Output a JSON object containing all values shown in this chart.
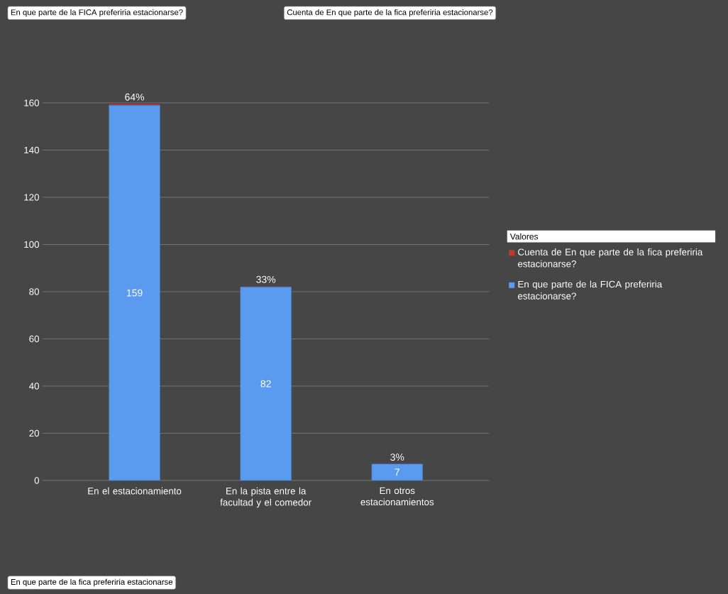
{
  "chart_data": {
    "type": "bar",
    "stacked": true,
    "categories": [
      "En el estacionamiento",
      "En la pista entre la facultad y el comedor",
      "En otros estacionamientos"
    ],
    "series": [
      {
        "name": "En que parte de la FICA preferiria estacionarse?",
        "color": "#5b9bef",
        "values": [
          159,
          82,
          7
        ],
        "value_labels": [
          "159",
          "82",
          "7"
        ]
      },
      {
        "name": "Cuenta de En que parte de la fica preferiria estacionarse?",
        "color": "#c0392b",
        "values": [
          0.64,
          0.33,
          0.03
        ],
        "value_labels": [
          "64%",
          "33%",
          "3%"
        ]
      }
    ],
    "ylim": [
      0,
      160
    ],
    "yticks": [
      0,
      20,
      40,
      60,
      80,
      100,
      120,
      140,
      160
    ],
    "grid": "y",
    "legend": "right",
    "legend_title": "Valores",
    "annotations": [
      "En que parte de la FICA preferiria estacionarse?",
      "Cuenta de En que parte de la fica preferiria estacionarse?",
      "En que parte de la fica preferiria estacionarse"
    ]
  }
}
